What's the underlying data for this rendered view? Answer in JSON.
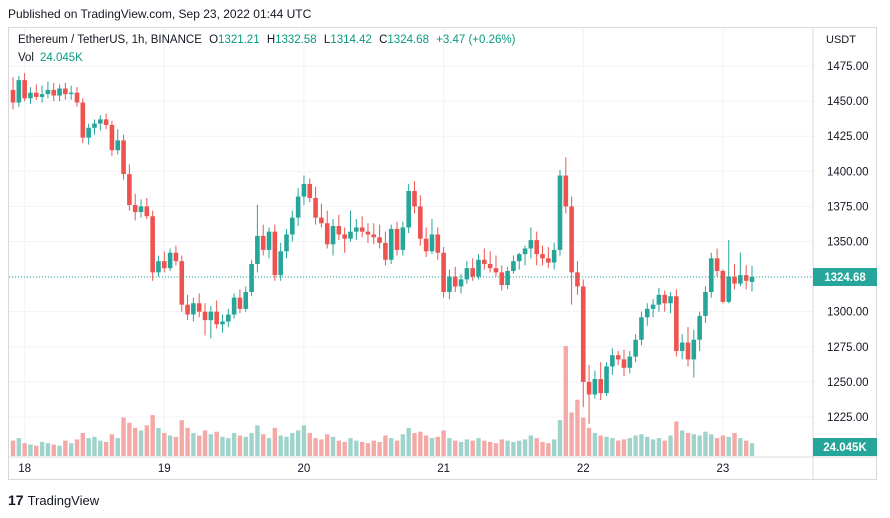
{
  "header": {
    "published": "Published on TradingView.com, Sep 23, 2022 01:44 UTC"
  },
  "legend": {
    "symbol": "Ethereum / TetherUS, 1h, BINANCE",
    "o_label": "O",
    "open": "1321.21",
    "h_label": "H",
    "high": "1332.58",
    "l_label": "L",
    "low": "1314.42",
    "c_label": "C",
    "close": "1324.68",
    "change": "+3.47 (+0.26%)",
    "vol_label": "Vol",
    "vol_value": "24.045K"
  },
  "price_axis": {
    "currency": "USDT",
    "ticks": [
      "1475.00",
      "1450.00",
      "1425.00",
      "1400.00",
      "1375.00",
      "1350.00",
      "1325.00",
      "1300.00",
      "1275.00",
      "1250.00",
      "1225.00"
    ],
    "last_price_label": "1324.68",
    "last_volume_label": "24.045K"
  },
  "time_axis": {
    "ticks": [
      "18",
      "19",
      "20",
      "21",
      "22",
      "23"
    ]
  },
  "footer": {
    "brand": "TradingView",
    "logo_text": "17"
  },
  "colors": {
    "up": "#26a69a",
    "down": "#ef5350",
    "vol_up": "#9fd3cc",
    "vol_down": "#f5a9a7",
    "last_line": "#26a69a",
    "grid": "#f0f3fa"
  },
  "chart_data": {
    "type": "candlestick",
    "symbol": "ETHUSDT",
    "interval": "1h",
    "y_range": [
      1210,
      1485
    ],
    "y_ticks": [
      1225,
      1250,
      1275,
      1300,
      1325,
      1350,
      1375,
      1400,
      1425,
      1450,
      1475
    ],
    "x_ticks": [
      "18",
      "19",
      "20",
      "21",
      "22",
      "23"
    ],
    "last_price": 1324.68,
    "last_volume": "24.045K",
    "candles": [
      [
        1458,
        1467,
        1444,
        1449
      ],
      [
        1449,
        1468,
        1446,
        1465
      ],
      [
        1465,
        1470,
        1450,
        1452
      ],
      [
        1452,
        1460,
        1448,
        1456
      ],
      [
        1456,
        1462,
        1451,
        1453
      ],
      [
        1453,
        1461,
        1449,
        1455
      ],
      [
        1455,
        1464,
        1452,
        1458
      ],
      [
        1458,
        1463,
        1450,
        1454
      ],
      [
        1454,
        1462,
        1450,
        1459
      ],
      [
        1459,
        1463,
        1451,
        1455
      ],
      [
        1455,
        1461,
        1451,
        1456
      ],
      [
        1456,
        1460,
        1446,
        1449
      ],
      [
        1449,
        1452,
        1420,
        1424
      ],
      [
        1424,
        1434,
        1419,
        1431
      ],
      [
        1431,
        1437,
        1426,
        1434
      ],
      [
        1434,
        1440,
        1429,
        1437
      ],
      [
        1437,
        1441,
        1430,
        1433
      ],
      [
        1433,
        1436,
        1411,
        1415
      ],
      [
        1415,
        1430,
        1412,
        1422
      ],
      [
        1422,
        1426,
        1394,
        1398
      ],
      [
        1398,
        1405,
        1372,
        1376
      ],
      [
        1376,
        1384,
        1365,
        1371
      ],
      [
        1371,
        1380,
        1367,
        1375
      ],
      [
        1375,
        1381,
        1366,
        1368
      ],
      [
        1368,
        1372,
        1322,
        1328
      ],
      [
        1328,
        1340,
        1325,
        1336
      ],
      [
        1336,
        1343,
        1328,
        1331
      ],
      [
        1331,
        1345,
        1329,
        1342
      ],
      [
        1342,
        1347,
        1333,
        1336
      ],
      [
        1336,
        1340,
        1300,
        1305
      ],
      [
        1305,
        1312,
        1294,
        1298
      ],
      [
        1298,
        1310,
        1293,
        1306
      ],
      [
        1306,
        1313,
        1296,
        1300
      ],
      [
        1300,
        1306,
        1283,
        1294
      ],
      [
        1294,
        1304,
        1281,
        1300
      ],
      [
        1300,
        1308,
        1288,
        1291
      ],
      [
        1291,
        1298,
        1285,
        1293
      ],
      [
        1293,
        1302,
        1289,
        1298
      ],
      [
        1298,
        1313,
        1295,
        1310
      ],
      [
        1310,
        1316,
        1299,
        1302
      ],
      [
        1302,
        1318,
        1300,
        1314
      ],
      [
        1314,
        1337,
        1311,
        1334
      ],
      [
        1334,
        1376,
        1328,
        1354
      ],
      [
        1354,
        1362,
        1340,
        1344
      ],
      [
        1344,
        1360,
        1338,
        1357
      ],
      [
        1357,
        1362,
        1322,
        1326
      ],
      [
        1326,
        1349,
        1322,
        1343
      ],
      [
        1343,
        1359,
        1338,
        1355
      ],
      [
        1355,
        1372,
        1350,
        1367
      ],
      [
        1367,
        1388,
        1361,
        1382
      ],
      [
        1382,
        1397,
        1376,
        1391
      ],
      [
        1391,
        1395,
        1378,
        1381
      ],
      [
        1381,
        1389,
        1362,
        1367
      ],
      [
        1367,
        1377,
        1360,
        1363
      ],
      [
        1363,
        1372,
        1345,
        1348
      ],
      [
        1348,
        1366,
        1340,
        1361
      ],
      [
        1361,
        1369,
        1351,
        1355
      ],
      [
        1355,
        1360,
        1342,
        1352
      ],
      [
        1352,
        1372,
        1350,
        1357
      ],
      [
        1357,
        1366,
        1351,
        1360
      ],
      [
        1360,
        1368,
        1353,
        1357
      ],
      [
        1357,
        1363,
        1349,
        1355
      ],
      [
        1355,
        1363,
        1348,
        1353
      ],
      [
        1353,
        1362,
        1345,
        1349
      ],
      [
        1349,
        1357,
        1333,
        1337
      ],
      [
        1337,
        1362,
        1334,
        1359
      ],
      [
        1359,
        1364,
        1340,
        1344
      ],
      [
        1344,
        1364,
        1340,
        1360
      ],
      [
        1360,
        1391,
        1356,
        1386
      ],
      [
        1386,
        1393,
        1370,
        1375
      ],
      [
        1375,
        1383,
        1347,
        1352
      ],
      [
        1352,
        1360,
        1339,
        1343
      ],
      [
        1343,
        1366,
        1341,
        1355
      ],
      [
        1355,
        1360,
        1337,
        1342
      ],
      [
        1342,
        1346,
        1310,
        1314
      ],
      [
        1314,
        1330,
        1309,
        1325
      ],
      [
        1325,
        1332,
        1314,
        1318
      ],
      [
        1318,
        1327,
        1313,
        1323
      ],
      [
        1323,
        1336,
        1320,
        1331
      ],
      [
        1331,
        1338,
        1322,
        1325
      ],
      [
        1325,
        1341,
        1323,
        1337
      ],
      [
        1337,
        1345,
        1330,
        1334
      ],
      [
        1334,
        1343,
        1328,
        1331
      ],
      [
        1331,
        1340,
        1325,
        1328
      ],
      [
        1328,
        1333,
        1315,
        1319
      ],
      [
        1319,
        1332,
        1316,
        1329
      ],
      [
        1329,
        1340,
        1327,
        1336
      ],
      [
        1336,
        1342,
        1330,
        1341
      ],
      [
        1341,
        1347,
        1333,
        1345
      ],
      [
        1345,
        1360,
        1338,
        1351
      ],
      [
        1351,
        1357,
        1333,
        1341
      ],
      [
        1341,
        1347,
        1333,
        1338
      ],
      [
        1338,
        1346,
        1331,
        1335
      ],
      [
        1335,
        1349,
        1330,
        1344
      ],
      [
        1344,
        1401,
        1340,
        1397
      ],
      [
        1397,
        1410,
        1370,
        1375
      ],
      [
        1375,
        1382,
        1305,
        1328
      ],
      [
        1328,
        1336,
        1312,
        1318
      ],
      [
        1318,
        1323,
        1232,
        1250
      ],
      [
        1250,
        1262,
        1220,
        1241
      ],
      [
        1241,
        1258,
        1238,
        1252
      ],
      [
        1252,
        1264,
        1237,
        1242
      ],
      [
        1242,
        1264,
        1240,
        1261
      ],
      [
        1261,
        1274,
        1255,
        1269
      ],
      [
        1269,
        1272,
        1262,
        1266
      ],
      [
        1266,
        1273,
        1254,
        1260
      ],
      [
        1260,
        1272,
        1256,
        1268
      ],
      [
        1268,
        1284,
        1264,
        1280
      ],
      [
        1280,
        1300,
        1276,
        1296
      ],
      [
        1296,
        1306,
        1290,
        1302
      ],
      [
        1302,
        1309,
        1296,
        1305
      ],
      [
        1305,
        1317,
        1300,
        1312
      ],
      [
        1312,
        1315,
        1300,
        1306
      ],
      [
        1306,
        1314,
        1299,
        1311
      ],
      [
        1311,
        1316,
        1268,
        1272
      ],
      [
        1272,
        1284,
        1266,
        1278
      ],
      [
        1278,
        1289,
        1261,
        1266
      ],
      [
        1266,
        1287,
        1253,
        1280
      ],
      [
        1280,
        1300,
        1272,
        1297
      ],
      [
        1297,
        1318,
        1292,
        1314
      ],
      [
        1314,
        1342,
        1310,
        1338
      ],
      [
        1338,
        1345,
        1325,
        1329
      ],
      [
        1329,
        1330,
        1306,
        1307
      ],
      [
        1307,
        1351,
        1306,
        1325
      ],
      [
        1325,
        1334,
        1316,
        1320
      ],
      [
        1320,
        1342,
        1318,
        1326
      ],
      [
        1326,
        1333,
        1316,
        1322
      ],
      [
        1321.21,
        1332.58,
        1314.42,
        1324.68
      ]
    ],
    "volumes": [
      12,
      14,
      10,
      9,
      8,
      11,
      10,
      9,
      8,
      12,
      10,
      13,
      18,
      14,
      15,
      12,
      11,
      17,
      14,
      30,
      26,
      22,
      20,
      24,
      32,
      22,
      18,
      16,
      15,
      28,
      22,
      18,
      16,
      20,
      17,
      19,
      15,
      14,
      18,
      16,
      15,
      18,
      24,
      17,
      14,
      22,
      16,
      15,
      18,
      20,
      24,
      18,
      14,
      13,
      17,
      15,
      12,
      11,
      14,
      12,
      11,
      10,
      12,
      11,
      16,
      14,
      12,
      17,
      22,
      18,
      19,
      16,
      14,
      15,
      20,
      14,
      12,
      11,
      13,
      12,
      14,
      12,
      11,
      10,
      13,
      12,
      11,
      12,
      13,
      16,
      14,
      11,
      10,
      13,
      28,
      86,
      34,
      44,
      30,
      22,
      18,
      16,
      15,
      14,
      12,
      13,
      14,
      16,
      17,
      15,
      13,
      14,
      12,
      16,
      27,
      20,
      18,
      17,
      16,
      19,
      17,
      14,
      16,
      15,
      18,
      14,
      12,
      10
    ]
  }
}
